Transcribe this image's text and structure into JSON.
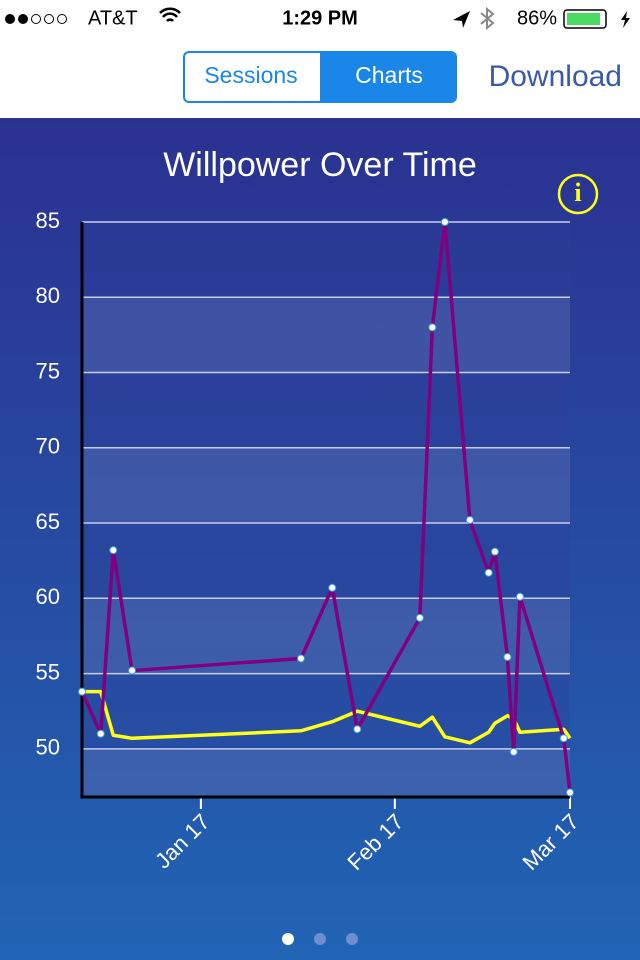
{
  "status_bar": {
    "carrier": "AT&T",
    "time": "1:29 PM",
    "battery": "86%"
  },
  "nav": {
    "segments": [
      "Sessions",
      "Charts"
    ],
    "action": "Download"
  },
  "chart_data": {
    "type": "line",
    "title": "Willpower Over Time",
    "info_label": "i",
    "x": [
      -2,
      1,
      3,
      6,
      33,
      38,
      42,
      52,
      54,
      56,
      60,
      63,
      64,
      66,
      67,
      68,
      75,
      76
    ],
    "series": [
      {
        "color": "#800080",
        "markers": true,
        "values": [
          53.8,
          51.0,
          63.2,
          55.2,
          56.0,
          60.7,
          51.3,
          58.7,
          78.0,
          85.0,
          65.2,
          61.7,
          63.1,
          56.1,
          49.8,
          60.1,
          50.7,
          47.1
        ]
      },
      {
        "color": "#ffff1a",
        "markers": false,
        "values": [
          53.8,
          53.8,
          50.9,
          50.7,
          51.2,
          51.8,
          52.5,
          51.5,
          52.1,
          50.8,
          50.4,
          51.1,
          51.7,
          52.2,
          52.0,
          51.1,
          51.3,
          50.7
        ]
      }
    ],
    "xlim": [
      -2,
      76
    ],
    "xticks": [
      {
        "value": 17,
        "label": "Jan 17"
      },
      {
        "value": 48,
        "label": "Feb 17"
      },
      {
        "value": 76,
        "label": "Mar 17"
      }
    ],
    "ylim": [
      46.8,
      85
    ],
    "yticks": [
      50,
      55,
      60,
      65,
      70,
      75,
      80,
      85
    ],
    "grid": true
  }
}
